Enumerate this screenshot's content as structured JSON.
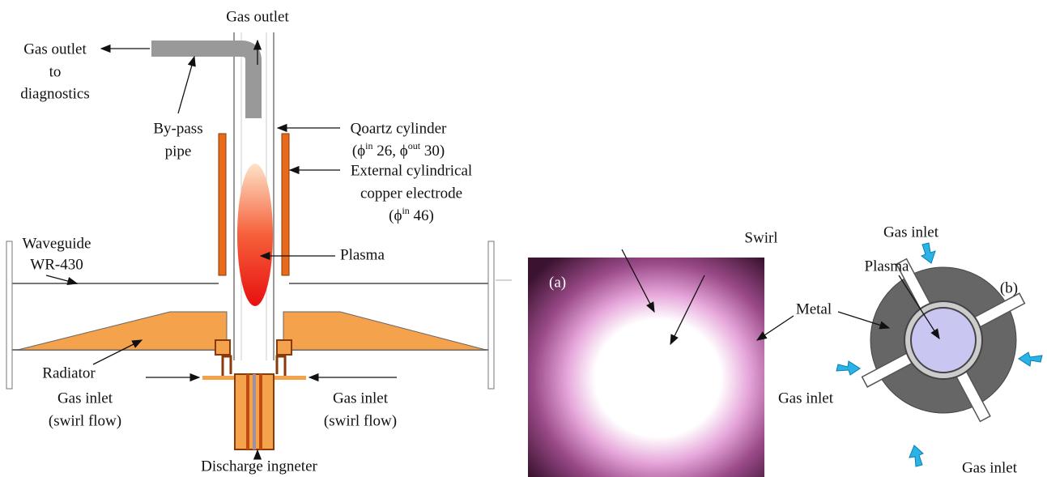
{
  "left": {
    "top_outlet": "Gas outlet",
    "diag_outlet": [
      "Gas outlet",
      "to",
      "diagnostics"
    ],
    "bypass": [
      "By-pass",
      "pipe"
    ],
    "quartz": {
      "line1": "Qoartz cylinder",
      "line2": [
        "(ϕ",
        "in",
        " 26, ϕ",
        "out",
        " 30)"
      ]
    },
    "electrode": {
      "line1": "External cylindrical",
      "line2": "copper electrode",
      "line3": [
        "(ϕ",
        "in",
        " 46)"
      ]
    },
    "waveguide": [
      "Waveguide",
      "WR-430"
    ],
    "plasma": "Plasma",
    "radiator": "Radiator",
    "inlet_left": [
      "Gas inlet",
      "(swirl flow)"
    ],
    "inlet_right": [
      "Gas inlet",
      "(swirl flow)"
    ],
    "igniter": "Discharge ingneter"
  },
  "right": {
    "photo_tag": "(a)",
    "swirl": "Swirl",
    "plasma": "Plasma",
    "metal": "Metal",
    "schematic_tag": "(b)",
    "inlet_top": "Gas inlet",
    "inlet_left": "Gas inlet",
    "inlet_bottom": "Gas inlet"
  }
}
